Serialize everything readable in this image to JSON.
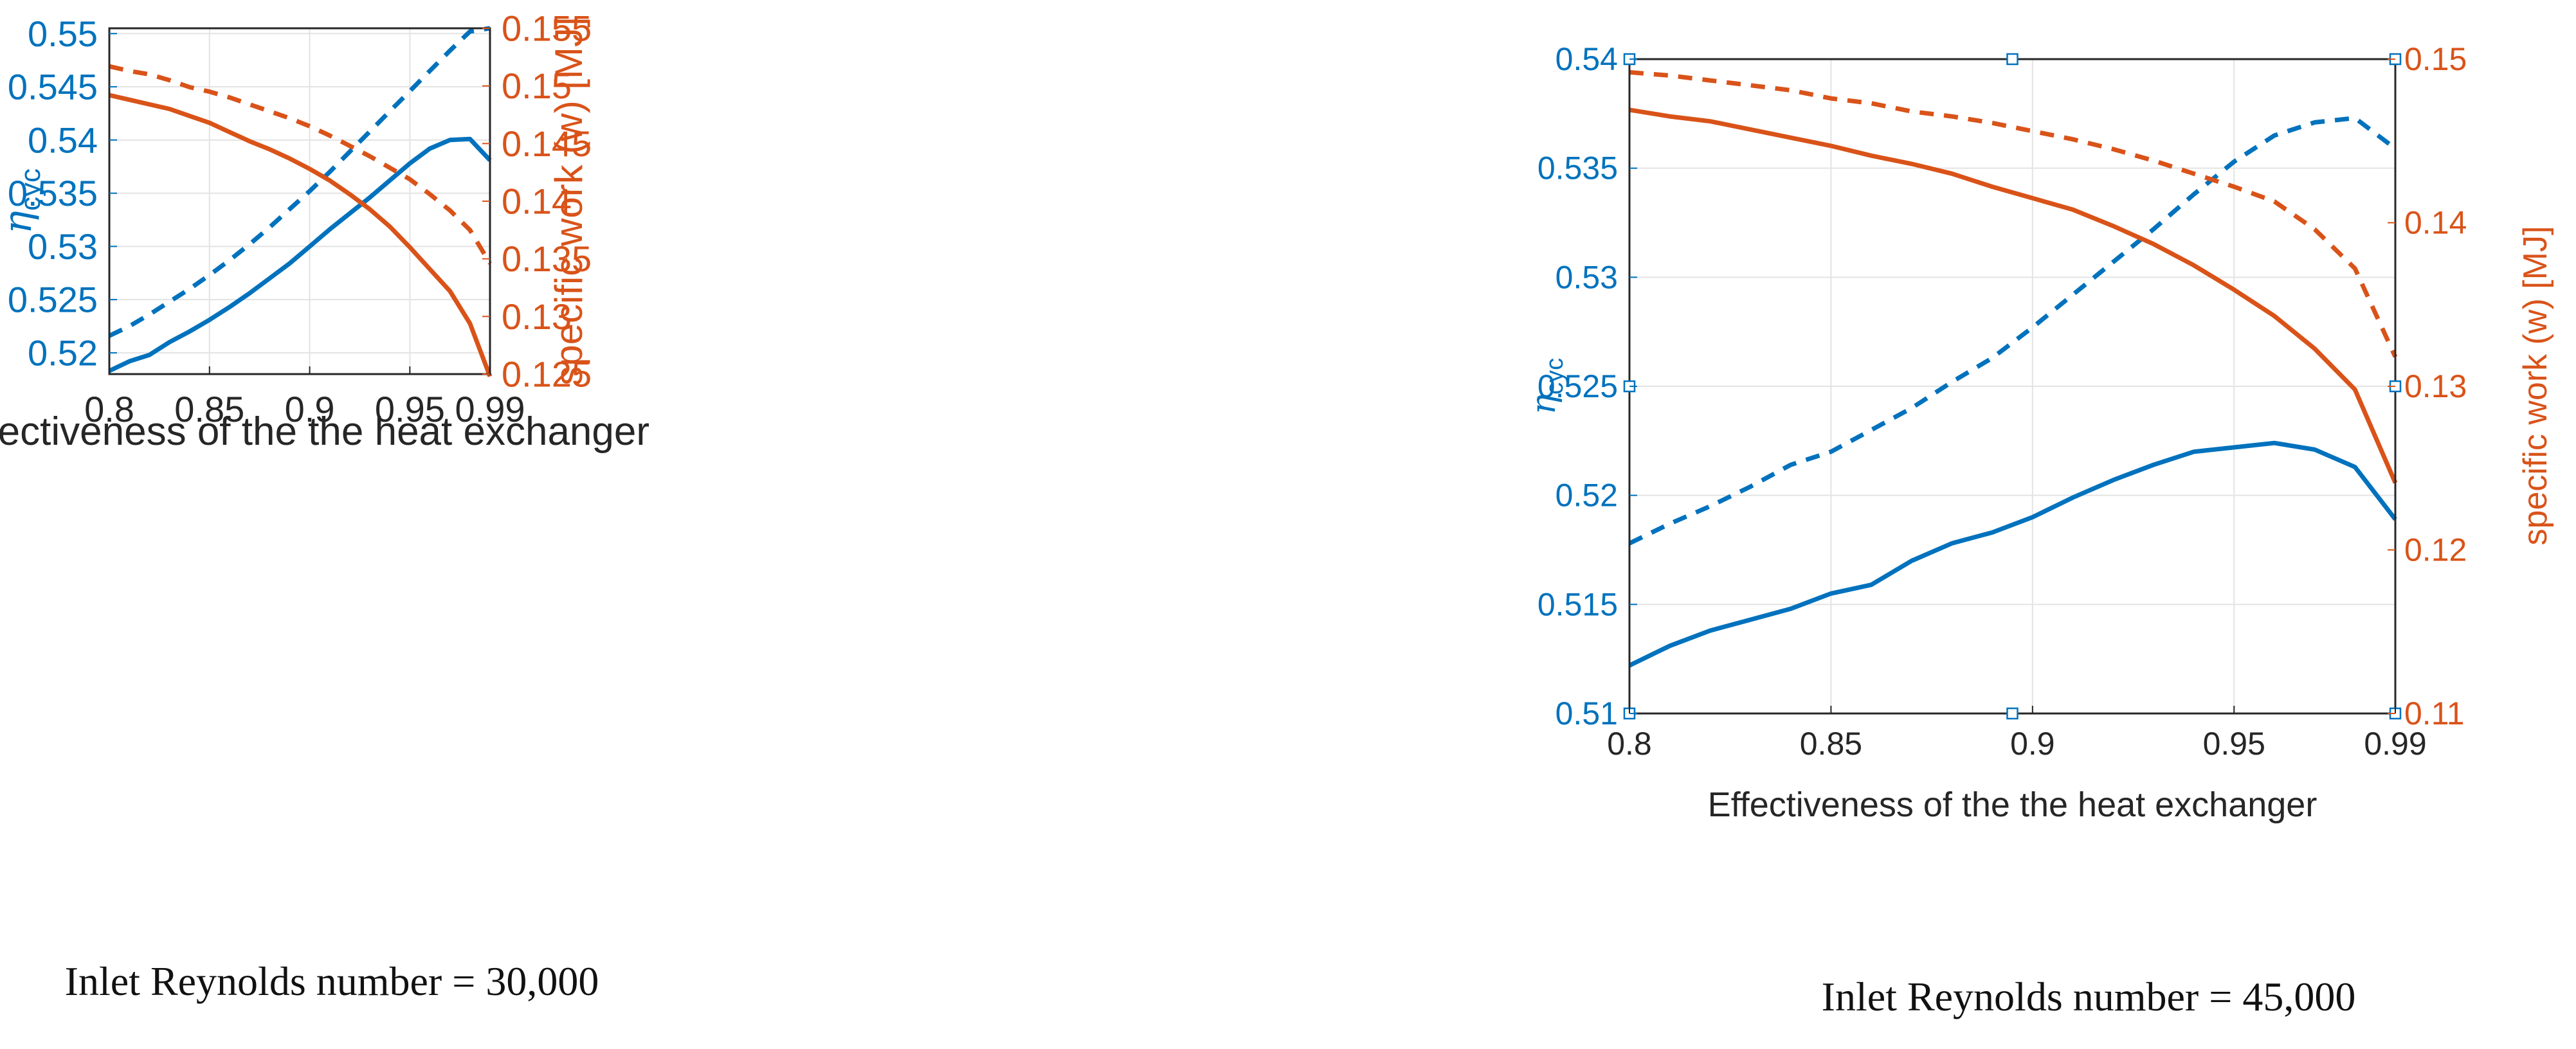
{
  "chart_data": [
    {
      "type": "line",
      "caption": "Inlet Reynolds number = 30,000",
      "xlabel": "Effectiveness of the the heat exchanger",
      "ylabel_left_main": "η",
      "ylabel_left_sub": "cyc",
      "ylabel_right": "specific work (w) [MJ]",
      "xlim": [
        0.8,
        0.99
      ],
      "ylim_left": [
        0.518,
        0.5505
      ],
      "ylim_right": [
        0.125,
        0.155
      ],
      "x_ticks": [
        0.8,
        0.85,
        0.9,
        0.95,
        0.99
      ],
      "x_tick_labels": [
        "0.8",
        "0.85",
        "0.9",
        "0.95",
        "0.99"
      ],
      "y_left_ticks": [
        0.52,
        0.525,
        0.53,
        0.535,
        0.54,
        0.545,
        0.55
      ],
      "y_left_tick_labels": [
        "0.52",
        "0.525",
        "0.53",
        "0.535",
        "0.54",
        "0.545",
        "0.55"
      ],
      "y_right_ticks": [
        0.125,
        0.13,
        0.135,
        0.14,
        0.145,
        0.15,
        0.155
      ],
      "y_right_tick_labels": [
        "0.125",
        "0.13",
        "0.135",
        "0.14",
        "0.145",
        "0.15",
        "0.155"
      ],
      "grid": true,
      "colors": {
        "left": "#0072BD",
        "right": "#D95319"
      },
      "series": [
        {
          "name": "efficiency (solid)",
          "axis": "left",
          "style": "solid",
          "x": [
            0.8,
            0.81,
            0.82,
            0.83,
            0.84,
            0.85,
            0.86,
            0.87,
            0.88,
            0.89,
            0.9,
            0.91,
            0.92,
            0.93,
            0.94,
            0.95,
            0.96,
            0.97,
            0.98,
            0.99
          ],
          "y": [
            0.5183,
            0.5192,
            0.5198,
            0.521,
            0.522,
            0.5231,
            0.5243,
            0.5256,
            0.527,
            0.5284,
            0.53,
            0.5316,
            0.5331,
            0.5346,
            0.5362,
            0.5378,
            0.5392,
            0.54,
            0.5401,
            0.5381
          ]
        },
        {
          "name": "efficiency (dashed)",
          "axis": "left",
          "style": "dashed",
          "x": [
            0.8,
            0.81,
            0.82,
            0.83,
            0.84,
            0.85,
            0.86,
            0.87,
            0.88,
            0.89,
            0.9,
            0.91,
            0.92,
            0.93,
            0.94,
            0.95,
            0.96,
            0.97,
            0.98,
            0.99
          ],
          "y": [
            0.5216,
            0.5225,
            0.5236,
            0.5248,
            0.526,
            0.5273,
            0.5287,
            0.5302,
            0.5318,
            0.5335,
            0.5352,
            0.537,
            0.5389,
            0.5408,
            0.5427,
            0.5446,
            0.5465,
            0.5484,
            0.5502,
            0.5505
          ]
        },
        {
          "name": "specific work (solid)",
          "axis": "right",
          "style": "solid",
          "x": [
            0.8,
            0.81,
            0.82,
            0.83,
            0.84,
            0.85,
            0.86,
            0.87,
            0.88,
            0.89,
            0.9,
            0.91,
            0.92,
            0.93,
            0.94,
            0.95,
            0.96,
            0.97,
            0.98,
            0.99
          ],
          "y": [
            0.1492,
            0.1488,
            0.1484,
            0.148,
            0.1474,
            0.1468,
            0.146,
            0.1452,
            0.1445,
            0.1437,
            0.1428,
            0.1418,
            0.1406,
            0.1393,
            0.1378,
            0.136,
            0.1341,
            0.1322,
            0.1294,
            0.1248
          ]
        },
        {
          "name": "specific work (dashed)",
          "axis": "right",
          "style": "dashed",
          "x": [
            0.8,
            0.81,
            0.82,
            0.83,
            0.84,
            0.85,
            0.86,
            0.87,
            0.88,
            0.89,
            0.9,
            0.91,
            0.92,
            0.93,
            0.94,
            0.95,
            0.96,
            0.97,
            0.98,
            0.99
          ],
          "y": [
            0.1517,
            0.1513,
            0.151,
            0.1505,
            0.1499,
            0.1495,
            0.149,
            0.1484,
            0.1478,
            0.1472,
            0.1465,
            0.1457,
            0.1448,
            0.1439,
            0.1429,
            0.1419,
            0.1406,
            0.1392,
            0.1375,
            0.1346
          ]
        }
      ]
    },
    {
      "type": "line",
      "caption": "Inlet Reynolds number = 45,000",
      "xlabel": "Effectiveness of the the heat exchanger",
      "ylabel_left_main": "η",
      "ylabel_left_sub": "cyc",
      "ylabel_right": "specific work (w) [MJ]",
      "xlim": [
        0.8,
        0.99
      ],
      "ylim_left": [
        0.51,
        0.54
      ],
      "ylim_right": [
        0.11,
        0.15
      ],
      "x_ticks": [
        0.8,
        0.85,
        0.9,
        0.95,
        0.99
      ],
      "x_tick_labels": [
        "0.8",
        "0.85",
        "0.9",
        "0.95",
        "0.99"
      ],
      "y_left_ticks": [
        0.51,
        0.515,
        0.52,
        0.525,
        0.53,
        0.535,
        0.54
      ],
      "y_left_tick_labels": [
        "0.51",
        "0.515",
        "0.52",
        "0.525",
        "0.53",
        "0.535",
        "0.54"
      ],
      "y_right_ticks": [
        0.11,
        0.12,
        0.13,
        0.14,
        0.15
      ],
      "y_right_tick_labels": [
        "0.11",
        "0.12",
        "0.13",
        "0.14",
        "0.15"
      ],
      "grid": true,
      "colors": {
        "left": "#0072BD",
        "right": "#D95319"
      },
      "series": [
        {
          "name": "efficiency (solid)",
          "axis": "left",
          "style": "solid",
          "x": [
            0.8,
            0.81,
            0.82,
            0.83,
            0.84,
            0.85,
            0.86,
            0.87,
            0.88,
            0.89,
            0.9,
            0.91,
            0.92,
            0.93,
            0.94,
            0.95,
            0.96,
            0.97,
            0.98,
            0.99
          ],
          "y": [
            0.5122,
            0.5131,
            0.5138,
            0.5143,
            0.5148,
            0.5155,
            0.5159,
            0.517,
            0.5178,
            0.5183,
            0.519,
            0.5199,
            0.5207,
            0.5214,
            0.522,
            0.5222,
            0.5224,
            0.5221,
            0.5213,
            0.5189
          ]
        },
        {
          "name": "efficiency (dashed)",
          "axis": "left",
          "style": "dashed",
          "x": [
            0.8,
            0.81,
            0.82,
            0.83,
            0.84,
            0.85,
            0.86,
            0.87,
            0.88,
            0.89,
            0.9,
            0.91,
            0.92,
            0.93,
            0.94,
            0.95,
            0.96,
            0.97,
            0.98,
            0.99
          ],
          "y": [
            0.5178,
            0.5187,
            0.5195,
            0.5204,
            0.5214,
            0.522,
            0.523,
            0.524,
            0.5252,
            0.5263,
            0.5277,
            0.5292,
            0.5307,
            0.5322,
            0.5338,
            0.5353,
            0.5365,
            0.5371,
            0.5373,
            0.5359
          ]
        },
        {
          "name": "specific work (solid)",
          "axis": "right",
          "style": "solid",
          "x": [
            0.8,
            0.81,
            0.82,
            0.83,
            0.84,
            0.85,
            0.86,
            0.87,
            0.88,
            0.89,
            0.9,
            0.91,
            0.92,
            0.93,
            0.94,
            0.95,
            0.96,
            0.97,
            0.98,
            0.99
          ],
          "y": [
            0.1469,
            0.1465,
            0.1462,
            0.1457,
            0.1452,
            0.1447,
            0.1441,
            0.1436,
            0.143,
            0.1422,
            0.1415,
            0.1408,
            0.1398,
            0.1387,
            0.1374,
            0.1359,
            0.1343,
            0.1323,
            0.1298,
            0.1241
          ]
        },
        {
          "name": "specific work (dashed)",
          "axis": "right",
          "style": "dashed",
          "x": [
            0.8,
            0.81,
            0.82,
            0.83,
            0.84,
            0.85,
            0.86,
            0.87,
            0.88,
            0.89,
            0.9,
            0.91,
            0.92,
            0.93,
            0.94,
            0.95,
            0.96,
            0.97,
            0.98,
            0.99
          ],
          "y": [
            0.1492,
            0.149,
            0.1487,
            0.1484,
            0.1481,
            0.1476,
            0.1473,
            0.1468,
            0.1465,
            0.1461,
            0.1456,
            0.1451,
            0.1445,
            0.1438,
            0.143,
            0.1422,
            0.1413,
            0.1396,
            0.1372,
            0.1318
          ]
        }
      ]
    }
  ]
}
